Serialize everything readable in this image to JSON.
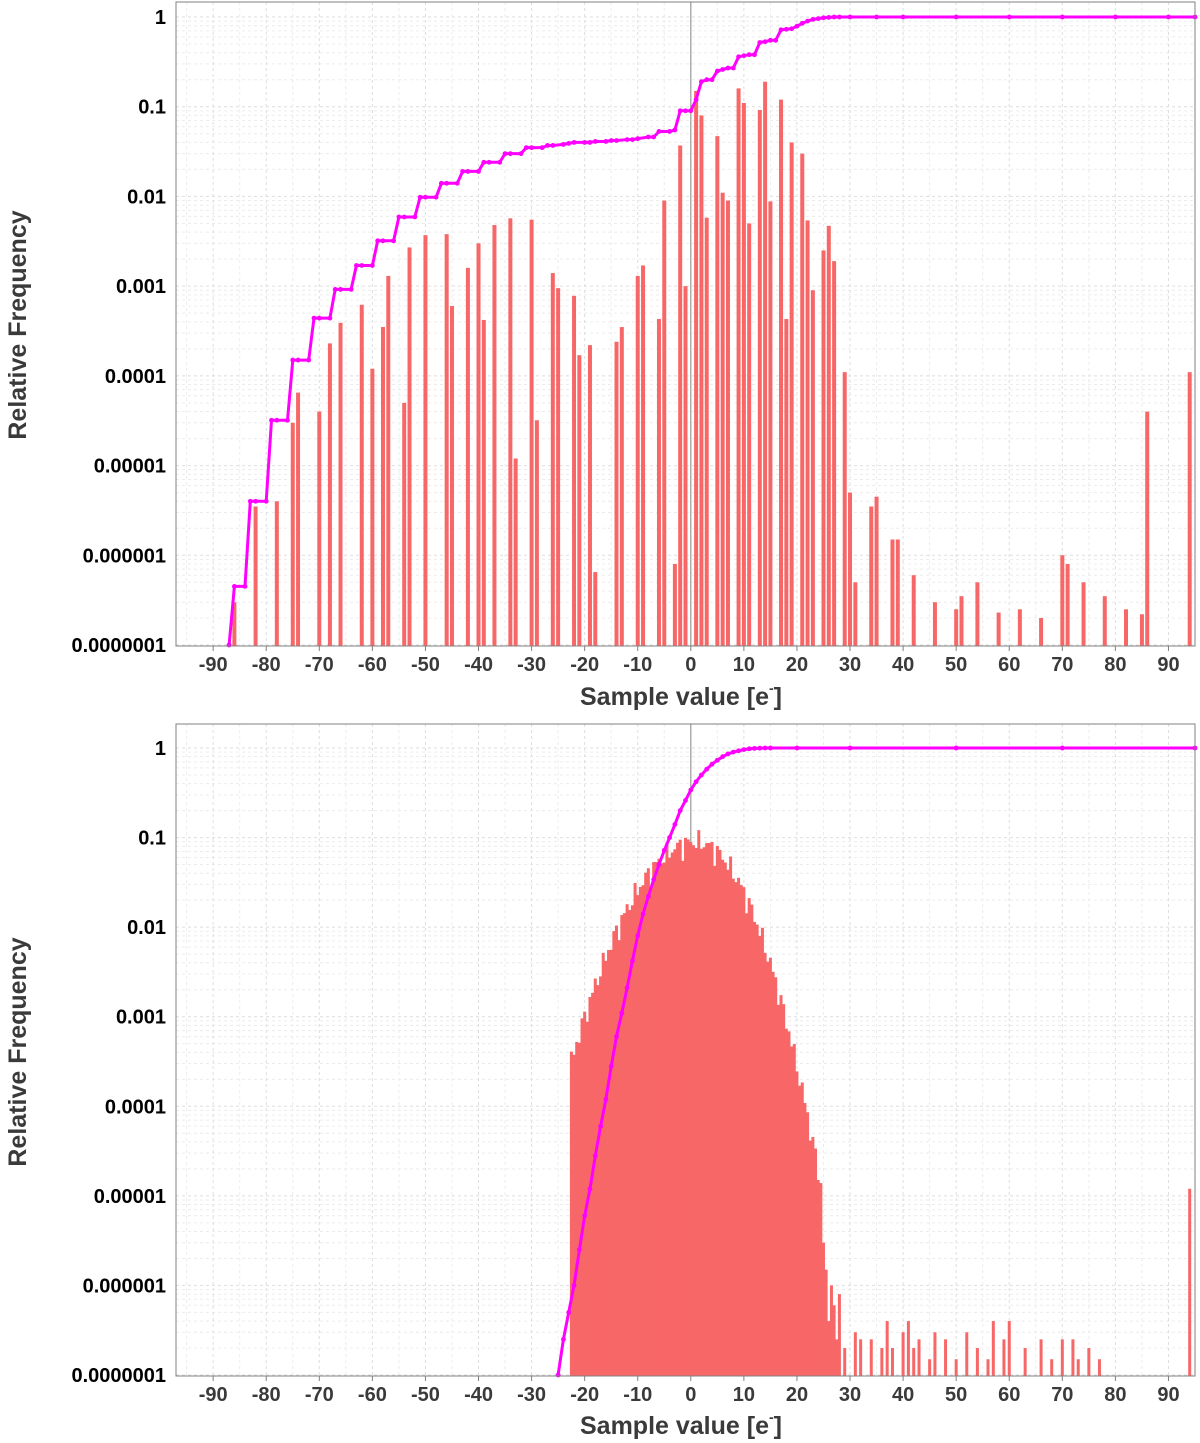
{
  "chart_data": [
    {
      "type": "bar",
      "ylabel": "Relative Frequency",
      "xlabel_main": "Sample value [e",
      "xlabel_sup": "-",
      "xlabel_close": "]",
      "xlim": [
        -97,
        95
      ],
      "ylim": [
        1e-07,
        1.2
      ],
      "yscale": "log",
      "grid": true,
      "xticks": [
        -90,
        -80,
        -70,
        -60,
        -50,
        -40,
        -30,
        -20,
        -10,
        0,
        10,
        20,
        30,
        40,
        50,
        60,
        70,
        80,
        90
      ],
      "ytick_labels": [
        "0.0000001",
        "0.000001",
        "0.00001",
        "0.0001",
        "0.001",
        "0.01",
        "0.1",
        "1"
      ],
      "colors": {
        "bars": "#f86767",
        "cumulative": "#ff00ff"
      },
      "series": [
        {
          "kind": "histogram",
          "x": [
            -86,
            -82,
            -78,
            -75,
            -74,
            -70,
            -68,
            -66,
            -62,
            -60,
            -58,
            -57,
            -54,
            -53,
            -50,
            -46,
            -45,
            -42,
            -40,
            -39,
            -37,
            -34,
            -33,
            -30,
            -29,
            -26,
            -25,
            -22,
            -21,
            -19,
            -18,
            -14,
            -13,
            -10,
            -9,
            -6,
            -5,
            -3,
            -2,
            -1,
            1,
            2,
            3,
            5,
            6,
            7,
            9,
            10,
            11,
            13,
            14,
            15,
            17,
            18,
            19,
            21,
            22,
            23,
            25,
            26,
            27,
            29,
            30,
            31,
            34,
            35,
            38,
            39,
            42,
            46,
            50,
            51,
            54,
            58,
            62,
            66,
            70,
            71,
            74,
            78,
            82,
            85,
            86,
            94
          ],
          "values": [
            3e-07,
            3.5e-06,
            4e-06,
            3e-05,
            6.5e-05,
            4e-05,
            0.00023,
            0.00039,
            0.00062,
            0.00012,
            0.00035,
            0.0013,
            5e-05,
            0.0027,
            0.0037,
            0.0038,
            0.0006,
            0.0016,
            0.003,
            0.00042,
            0.0048,
            0.0057,
            1.2e-05,
            0.0055,
            3.2e-05,
            0.0014,
            0.00095,
            0.00078,
            0.00017,
            0.00022,
            6.5e-07,
            0.00024,
            0.00035,
            0.0013,
            0.0017,
            0.00043,
            0.009,
            8e-07,
            0.037,
            0.001,
            0.15,
            0.08,
            0.0058,
            0.047,
            0.011,
            0.009,
            0.16,
            0.11,
            0.005,
            0.092,
            0.19,
            0.0088,
            0.12,
            0.00043,
            0.04,
            0.03,
            0.0054,
            0.0009,
            0.0025,
            0.0047,
            0.0019,
            0.00011,
            5e-06,
            5e-07,
            3.5e-06,
            4.5e-06,
            1.5e-06,
            1.5e-06,
            6e-07,
            3e-07,
            2.5e-07,
            3.5e-07,
            5e-07,
            2.3e-07,
            2.5e-07,
            2e-07,
            1e-06,
            8e-07,
            5e-07,
            3.5e-07,
            2.5e-07,
            2.2e-07,
            4e-05,
            0.00011
          ]
        },
        {
          "kind": "cumulative",
          "name": "",
          "x": [
            -87,
            -86,
            -84,
            -83,
            -82,
            -80,
            -79,
            -78,
            -76,
            -75,
            -74,
            -72,
            -71,
            -70,
            -68,
            -67,
            -66,
            -64,
            -63,
            -62,
            -60,
            -59,
            -58,
            -56,
            -55,
            -54,
            -52,
            -51,
            -50,
            -48,
            -47,
            -46,
            -44,
            -43,
            -42,
            -40,
            -39,
            -38,
            -36,
            -35,
            -34,
            -32,
            -31,
            -30,
            -28,
            -27,
            -26,
            -24,
            -23,
            -22,
            -20,
            -19,
            -18,
            -16,
            -15,
            -14,
            -12,
            -11,
            -10,
            -8,
            -7,
            -6,
            -4,
            -3,
            -2,
            -1,
            0,
            1,
            2,
            3,
            4,
            5,
            6,
            7,
            8,
            9,
            10,
            11,
            12,
            13,
            14,
            15,
            16,
            17,
            18,
            19,
            20,
            21,
            22,
            23,
            24,
            25,
            26,
            27,
            28,
            30,
            35,
            40,
            50,
            60,
            70,
            80,
            90,
            95
          ],
          "values": [
            1e-07,
            4.5e-07,
            4.5e-07,
            4e-06,
            4e-06,
            4e-06,
            3.2e-05,
            3.2e-05,
            3.2e-05,
            0.00015,
            0.00015,
            0.00015,
            0.00044,
            0.00044,
            0.00044,
            0.00092,
            0.00092,
            0.00092,
            0.0017,
            0.0017,
            0.0017,
            0.0032,
            0.0032,
            0.0032,
            0.0059,
            0.0059,
            0.0059,
            0.0098,
            0.0098,
            0.0098,
            0.014,
            0.014,
            0.014,
            0.019,
            0.019,
            0.019,
            0.024,
            0.024,
            0.024,
            0.03,
            0.03,
            0.03,
            0.035,
            0.035,
            0.035,
            0.037,
            0.037,
            0.038,
            0.039,
            0.04,
            0.04,
            0.04,
            0.041,
            0.041,
            0.042,
            0.042,
            0.043,
            0.043,
            0.044,
            0.046,
            0.046,
            0.053,
            0.053,
            0.055,
            0.09,
            0.09,
            0.09,
            0.12,
            0.19,
            0.2,
            0.2,
            0.25,
            0.26,
            0.27,
            0.27,
            0.36,
            0.37,
            0.38,
            0.38,
            0.52,
            0.53,
            0.55,
            0.55,
            0.72,
            0.73,
            0.74,
            0.79,
            0.85,
            0.9,
            0.94,
            0.96,
            0.98,
            0.99,
            1.0,
            1.0,
            1.0,
            1.0,
            1.0,
            1.0,
            1.0,
            1.0,
            1.0,
            1.0,
            1.0
          ]
        }
      ]
    },
    {
      "type": "bar",
      "ylabel": "Relative Frequency",
      "xlabel_main": "Sample value [e",
      "xlabel_sup": "-",
      "xlabel_close": "]",
      "xlim": [
        -97,
        95
      ],
      "ylim": [
        1e-07,
        1.2
      ],
      "yscale": "log",
      "grid": true,
      "xticks": [
        -90,
        -80,
        -70,
        -60,
        -50,
        -40,
        -30,
        -20,
        -10,
        0,
        10,
        20,
        30,
        40,
        50,
        60,
        70,
        80,
        90
      ],
      "ytick_labels": [
        "0.0000001",
        "0.000001",
        "0.00001",
        "0.0001",
        "0.001",
        "0.01",
        "0.1",
        "1"
      ],
      "colors": {
        "bars": "#f86767",
        "cumulative": "#ff00ff"
      },
      "series": [
        {
          "kind": "histogram-gaussian",
          "x_range": [
            -22.5,
            24.5
          ],
          "x_step": 0.5,
          "peak": 0.09,
          "center": 1,
          "sigma_left": 7.0,
          "sigma_right": 5.6,
          "tail_x": [
            25,
            25.5,
            26,
            26.5,
            27,
            27.5,
            28,
            29,
            30,
            31,
            32,
            33,
            34,
            35,
            36,
            37,
            38,
            39,
            40,
            41,
            42,
            43,
            44,
            45,
            46,
            48,
            50,
            52,
            54,
            56,
            57,
            59,
            60,
            63,
            66,
            68,
            70,
            72,
            73,
            75,
            77,
            81,
            89,
            94
          ],
          "tail_values": [
            3e-06,
            1.5e-06,
            4e-07,
            1e-06,
            6e-07,
            2.5e-07,
            8e-07,
            2e-07,
            1e-07,
            3e-07,
            2.5e-07,
            1e-07,
            2.5e-07,
            1e-07,
            2e-07,
            4e-07,
            2e-07,
            1e-07,
            3e-07,
            4e-07,
            2e-07,
            2.5e-07,
            1e-07,
            1.5e-07,
            3e-07,
            2.5e-07,
            1.5e-07,
            3e-07,
            2e-07,
            1.5e-07,
            4e-07,
            2.5e-07,
            4e-07,
            2e-07,
            2.5e-07,
            1.5e-07,
            2.5e-07,
            2.5e-07,
            1.5e-07,
            2e-07,
            1.5e-07,
            1e-07,
            1e-07,
            1.2e-05
          ]
        },
        {
          "kind": "cumulative",
          "name": "",
          "x": [
            -25,
            -24,
            -23,
            -22,
            -21,
            -20,
            -19,
            -18,
            -17,
            -16,
            -15,
            -14,
            -13,
            -12,
            -11,
            -10,
            -9,
            -8,
            -7,
            -6,
            -5,
            -4,
            -3,
            -2,
            -1,
            0,
            1,
            2,
            3,
            4,
            5,
            6,
            7,
            8,
            9,
            10,
            11,
            12,
            13,
            14,
            15,
            20,
            30,
            50,
            70,
            95
          ],
          "values": [
            1e-07,
            2.5e-07,
            5e-07,
            1e-06,
            2.5e-06,
            6e-06,
            1.2e-05,
            2.8e-05,
            6e-05,
            0.00012,
            0.00028,
            0.0006,
            0.0011,
            0.0021,
            0.0042,
            0.008,
            0.014,
            0.022,
            0.034,
            0.05,
            0.072,
            0.1,
            0.14,
            0.2,
            0.26,
            0.34,
            0.42,
            0.5,
            0.58,
            0.66,
            0.73,
            0.8,
            0.86,
            0.9,
            0.93,
            0.96,
            0.98,
            0.99,
            0.995,
            1.0,
            1.0,
            1.0,
            1.0,
            1.0,
            1.0,
            1.0
          ]
        }
      ]
    }
  ]
}
